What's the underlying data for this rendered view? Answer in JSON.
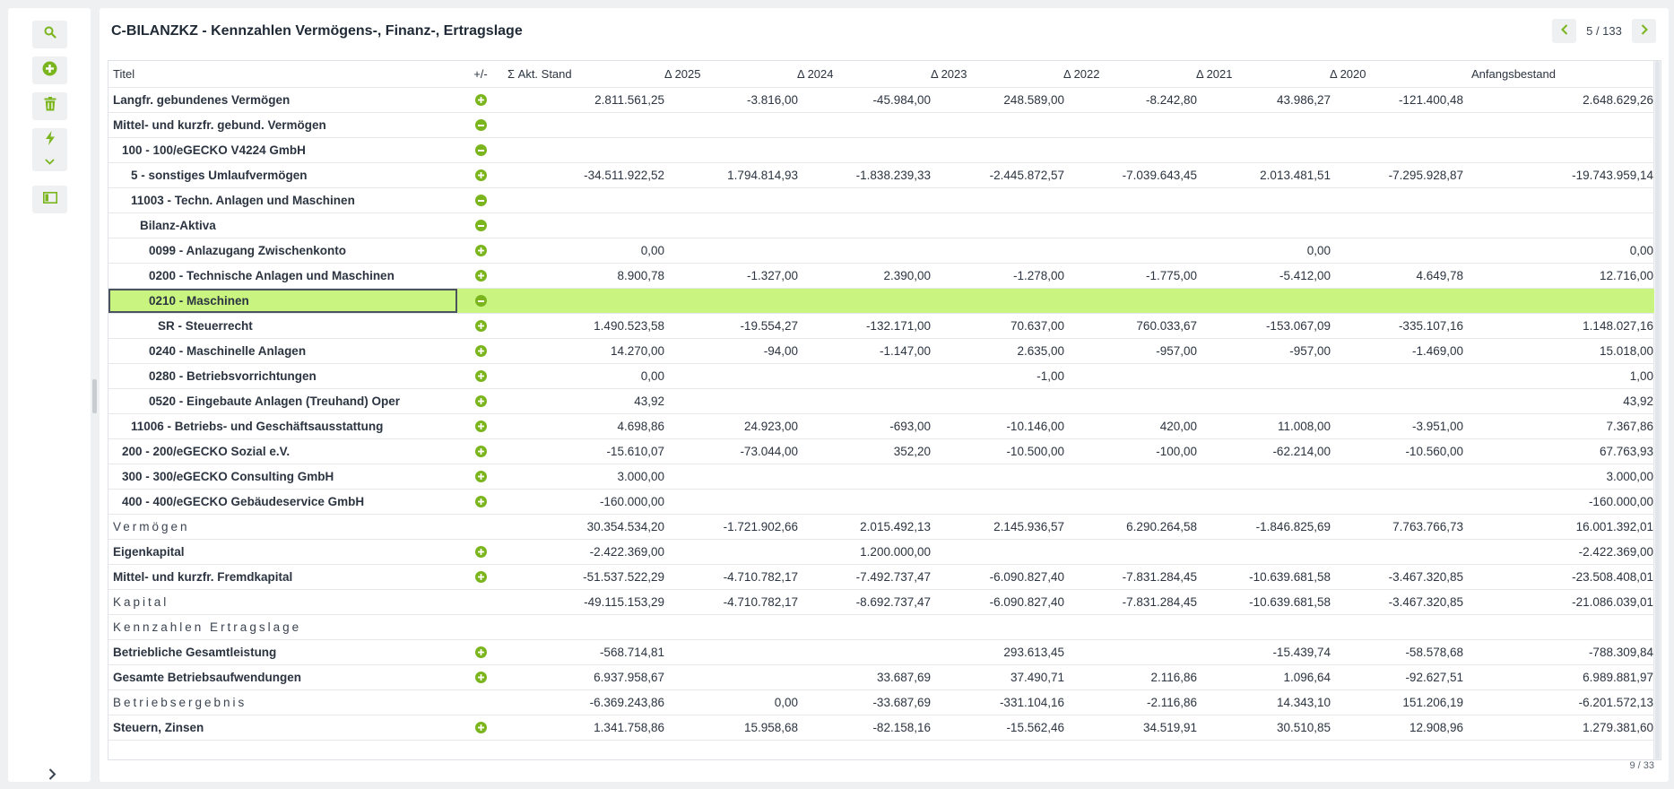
{
  "title": "C-BILANZKZ - Kennzahlen Vermögens-, Finanz-, Ertragslage",
  "pager": {
    "label": "5 / 133"
  },
  "footer": {
    "page": "9 / 33"
  },
  "sidebar": {
    "chevron": "›",
    "icons": [
      "search-icon",
      "add-icon",
      "trash-icon",
      "lightning-icon",
      "panel-icon"
    ]
  },
  "colors": {
    "accent": "#7ab51d",
    "selected_row": "#c8f47f"
  },
  "table": {
    "headers": [
      "Titel",
      "+/-",
      "Σ Akt. Stand",
      "Δ 2025",
      "Δ 2024",
      "Δ 2023",
      "Δ 2022",
      "Δ 2021",
      "Δ 2020",
      "Anfangsbestand"
    ],
    "rows": [
      {
        "title": "Langfr. gebundenes Vermögen",
        "indent": 0,
        "icon": "plus",
        "style": "bold",
        "values": [
          "2.811.561,25",
          "-3.816,00",
          "-45.984,00",
          "248.589,00",
          "-8.242,80",
          "43.986,27",
          "-121.400,48",
          "2.648.629,26"
        ]
      },
      {
        "title": "Mittel- und kurzfr. gebund. Vermögen",
        "indent": 0,
        "icon": "minus",
        "style": "bold",
        "values": [
          "",
          "",
          "",
          "",
          "",
          "",
          "",
          ""
        ]
      },
      {
        "title": "100 - 100/eGECKO V4224 GmbH",
        "indent": 1,
        "icon": "minus",
        "style": "bold",
        "values": [
          "",
          "",
          "",
          "",
          "",
          "",
          "",
          ""
        ]
      },
      {
        "title": "5 - sonstiges Umlaufvermögen",
        "indent": 2,
        "icon": "plus",
        "style": "bold",
        "values": [
          "-34.511.922,52",
          "1.794.814,93",
          "-1.838.239,33",
          "-2.445.872,57",
          "-7.039.643,45",
          "2.013.481,51",
          "-7.295.928,87",
          "-19.743.959,14"
        ]
      },
      {
        "title": "11003 - Techn. Anlagen und Maschinen",
        "indent": 2,
        "icon": "minus",
        "style": "bold",
        "values": [
          "",
          "",
          "",
          "",
          "",
          "",
          "",
          ""
        ]
      },
      {
        "title": "Bilanz-Aktiva",
        "indent": 3,
        "icon": "minus",
        "style": "bold",
        "values": [
          "",
          "",
          "",
          "",
          "",
          "",
          "",
          ""
        ]
      },
      {
        "title": "0099 - Anlazugang Zwischenkonto",
        "indent": 4,
        "icon": "plus",
        "style": "bold",
        "values": [
          "0,00",
          "",
          "",
          "",
          "",
          "0,00",
          "",
          "0,00"
        ]
      },
      {
        "title": "0200 - Technische Anlagen und Maschinen",
        "indent": 4,
        "icon": "plus",
        "style": "bold",
        "values": [
          "8.900,78",
          "-1.327,00",
          "2.390,00",
          "-1.278,00",
          "-1.775,00",
          "-5.412,00",
          "4.649,78",
          "12.716,00"
        ]
      },
      {
        "title": "0210 - Maschinen",
        "indent": 4,
        "icon": "minus",
        "style": "bold",
        "selected": true,
        "values": [
          "",
          "",
          "",
          "",
          "",
          "",
          "",
          ""
        ]
      },
      {
        "title": "SR - Steuerrecht",
        "indent": 5,
        "icon": "plus",
        "style": "bold",
        "values": [
          "1.490.523,58",
          "-19.554,27",
          "-132.171,00",
          "70.637,00",
          "760.033,67",
          "-153.067,09",
          "-335.107,16",
          "1.148.027,16"
        ]
      },
      {
        "title": "0240 - Maschinelle Anlagen",
        "indent": 4,
        "icon": "plus",
        "style": "bold",
        "values": [
          "14.270,00",
          "-94,00",
          "-1.147,00",
          "2.635,00",
          "-957,00",
          "-957,00",
          "-1.469,00",
          "15.018,00"
        ]
      },
      {
        "title": "0280 - Betriebsvorrichtungen",
        "indent": 4,
        "icon": "plus",
        "style": "bold",
        "values": [
          "0,00",
          "",
          "",
          "-1,00",
          "",
          "",
          "",
          "1,00"
        ]
      },
      {
        "title": "0520 - Eingebaute Anlagen (Treuhand) Oper",
        "indent": 4,
        "icon": "plus",
        "style": "bold",
        "values": [
          "43,92",
          "",
          "",
          "",
          "",
          "",
          "",
          "43,92"
        ]
      },
      {
        "title": "11006 - Betriebs- und Geschäftsausstattung",
        "indent": 2,
        "icon": "plus",
        "style": "bold",
        "values": [
          "4.698,86",
          "24.923,00",
          "-693,00",
          "-10.146,00",
          "420,00",
          "11.008,00",
          "-3.951,00",
          "7.367,86"
        ]
      },
      {
        "title": "200 - 200/eGECKO Sozial e.V.",
        "indent": 1,
        "icon": "plus",
        "style": "bold",
        "values": [
          "-15.610,07",
          "-73.044,00",
          "352,20",
          "-10.500,00",
          "-100,00",
          "-62.214,00",
          "-10.560,00",
          "67.763,93"
        ]
      },
      {
        "title": "300 - 300/eGECKO Consulting GmbH",
        "indent": 1,
        "icon": "plus",
        "style": "bold",
        "values": [
          "3.000,00",
          "",
          "",
          "",
          "",
          "",
          "",
          "3.000,00"
        ]
      },
      {
        "title": "400 - 400/eGECKO Gebäudeservice GmbH",
        "indent": 1,
        "icon": "plus",
        "style": "bold",
        "values": [
          "-160.000,00",
          "",
          "",
          "",
          "",
          "",
          "",
          "-160.000,00"
        ]
      },
      {
        "title": "Vermögen",
        "indent": 0,
        "icon": "",
        "style": "plain",
        "values": [
          "30.354.534,20",
          "-1.721.902,66",
          "2.015.492,13",
          "2.145.936,57",
          "6.290.264,58",
          "-1.846.825,69",
          "7.763.766,73",
          "16.001.392,01"
        ]
      },
      {
        "title": "Eigenkapital",
        "indent": 0,
        "icon": "plus",
        "style": "bold",
        "values": [
          "-2.422.369,00",
          "",
          "1.200.000,00",
          "",
          "",
          "",
          "",
          "-2.422.369,00"
        ]
      },
      {
        "title": "Mittel- und kurzfr. Fremdkapital",
        "indent": 0,
        "icon": "plus",
        "style": "bold",
        "values": [
          "-51.537.522,29",
          "-4.710.782,17",
          "-7.492.737,47",
          "-6.090.827,40",
          "-7.831.284,45",
          "-10.639.681,58",
          "-3.467.320,85",
          "-23.508.408,01"
        ]
      },
      {
        "title": "Kapital",
        "indent": 0,
        "icon": "",
        "style": "plain",
        "values": [
          "-49.115.153,29",
          "-4.710.782,17",
          "-8.692.737,47",
          "-6.090.827,40",
          "-7.831.284,45",
          "-10.639.681,58",
          "-3.467.320,85",
          "-21.086.039,01"
        ]
      },
      {
        "title": "Kennzahlen Ertragslage",
        "indent": 0,
        "icon": "",
        "style": "plain",
        "values": [
          "",
          "",
          "",
          "",
          "",
          "",
          "",
          ""
        ]
      },
      {
        "title": "Betriebliche Gesamtleistung",
        "indent": 0,
        "icon": "plus",
        "style": "bold",
        "values": [
          "-568.714,81",
          "",
          "",
          "293.613,45",
          "",
          "-15.439,74",
          "-58.578,68",
          "-788.309,84"
        ]
      },
      {
        "title": "Gesamte Betriebsaufwendungen",
        "indent": 0,
        "icon": "plus",
        "style": "bold",
        "values": [
          "6.937.958,67",
          "",
          "33.687,69",
          "37.490,71",
          "2.116,86",
          "1.096,64",
          "-92.627,51",
          "6.989.881,97"
        ]
      },
      {
        "title": "Betriebsergebnis",
        "indent": 0,
        "icon": "",
        "style": "plain",
        "values": [
          "-6.369.243,86",
          "0,00",
          "-33.687,69",
          "-331.104,16",
          "-2.116,86",
          "14.343,10",
          "151.206,19",
          "-6.201.572,13"
        ]
      },
      {
        "title": "Steuern, Zinsen",
        "indent": 0,
        "icon": "plus",
        "style": "bold",
        "values": [
          "1.341.758,86",
          "15.958,68",
          "-82.158,16",
          "-15.562,46",
          "34.519,91",
          "30.510,85",
          "12.908,96",
          "1.279.381,60"
        ]
      }
    ]
  }
}
